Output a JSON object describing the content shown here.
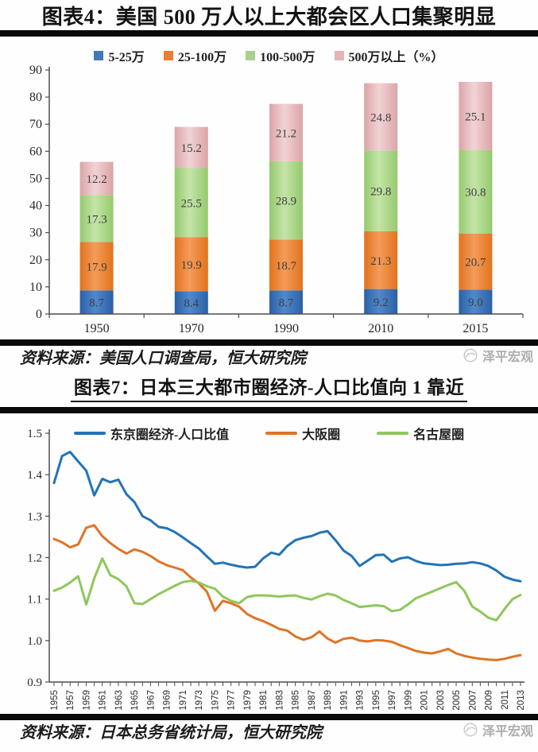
{
  "page": {
    "watermark_text": "泽平宏观"
  },
  "chart4": {
    "title": "图表4：美国 500 万人以上大都会区人口集聚明显",
    "source": "资料来源：美国人口调查局，恒大研究院"
  },
  "chart7": {
    "title": "图表7：日本三大都市圈经济-人口比值向 1 靠近",
    "source": "资料来源：日本总务省统计局，恒大研究院"
  },
  "chart_data": [
    {
      "type": "bar",
      "stacked": true,
      "title": "图表4：美国 500 万人以上大都会区人口集聚明显",
      "categories": [
        "1950",
        "1970",
        "1990",
        "2010",
        "2015"
      ],
      "series": [
        {
          "name": "5-25万",
          "color": "#4277b8",
          "color_edge": "#2c60a6",
          "color_center": "#5089cb",
          "values": [
            8.7,
            8.4,
            8.7,
            9.2,
            9.0
          ]
        },
        {
          "name": "25-100万",
          "color": "#ed7d31",
          "color_edge": "#e1731d",
          "color_center": "#f49c5a",
          "values": [
            17.9,
            19.9,
            18.7,
            21.3,
            20.7
          ]
        },
        {
          "name": "100-500万",
          "color": "#a9d08e",
          "color_edge": "#95c96d",
          "color_center": "#c4e5a9",
          "values": [
            17.3,
            25.5,
            28.9,
            29.8,
            30.8
          ]
        },
        {
          "name": "500万以上（%）",
          "color": "#e3b4b8",
          "color_edge": "#dba4a8",
          "color_center": "#f1d3d5",
          "values": [
            12.2,
            15.2,
            21.2,
            24.8,
            25.1
          ]
        }
      ],
      "ylim": [
        0,
        90
      ],
      "ytick_step": 10,
      "grid": false,
      "legend_position": "top",
      "value_label_color": "#3f3f3f"
    },
    {
      "type": "line",
      "title": "图表7：日本三大都市圈经济-人口比值向 1 靠近",
      "x_start": 1955,
      "x_end": 2013,
      "xtick_label_step": 2,
      "ylim": [
        0.9,
        1.5
      ],
      "ytick_step": 0.1,
      "grid": false,
      "legend_position": "top",
      "series": [
        {
          "name": "东京圈经济-人口比值",
          "color": "#2273b8",
          "values": [
            1.38,
            1.445,
            1.455,
            1.432,
            1.41,
            1.35,
            1.39,
            1.382,
            1.388,
            1.353,
            1.334,
            1.3,
            1.29,
            1.274,
            1.271,
            1.262,
            1.249,
            1.235,
            1.222,
            1.203,
            1.185,
            1.188,
            1.183,
            1.179,
            1.176,
            1.178,
            1.198,
            1.212,
            1.207,
            1.228,
            1.242,
            1.248,
            1.252,
            1.26,
            1.264,
            1.242,
            1.217,
            1.204,
            1.18,
            1.193,
            1.206,
            1.207,
            1.19,
            1.198,
            1.201,
            1.192,
            1.186,
            1.184,
            1.182,
            1.183,
            1.185,
            1.186,
            1.189,
            1.186,
            1.18,
            1.169,
            1.154,
            1.147,
            1.143
          ]
        },
        {
          "name": "大阪圈",
          "color": "#df7426",
          "values": [
            1.245,
            1.237,
            1.225,
            1.232,
            1.272,
            1.278,
            1.252,
            1.235,
            1.221,
            1.21,
            1.22,
            1.214,
            1.204,
            1.191,
            1.182,
            1.176,
            1.17,
            1.152,
            1.138,
            1.118,
            1.072,
            1.096,
            1.09,
            1.082,
            1.064,
            1.054,
            1.047,
            1.038,
            1.028,
            1.024,
            1.01,
            1.002,
            1.008,
            1.022,
            1.005,
            0.995,
            1.004,
            1.007,
            1.0,
            0.998,
            1.001,
            1.0,
            0.997,
            0.989,
            0.982,
            0.975,
            0.971,
            0.969,
            0.974,
            0.98,
            0.969,
            0.963,
            0.959,
            0.956,
            0.954,
            0.953,
            0.956,
            0.961,
            0.965
          ]
        },
        {
          "name": "名古屋圈",
          "color": "#8ec75b",
          "values": [
            1.12,
            1.128,
            1.14,
            1.155,
            1.087,
            1.15,
            1.198,
            1.158,
            1.148,
            1.131,
            1.09,
            1.088,
            1.1,
            1.112,
            1.122,
            1.132,
            1.141,
            1.144,
            1.14,
            1.131,
            1.125,
            1.106,
            1.096,
            1.09,
            1.105,
            1.109,
            1.109,
            1.108,
            1.106,
            1.108,
            1.109,
            1.103,
            1.099,
            1.107,
            1.113,
            1.109,
            1.098,
            1.09,
            1.081,
            1.083,
            1.085,
            1.083,
            1.071,
            1.074,
            1.087,
            1.102,
            1.11,
            1.118,
            1.126,
            1.134,
            1.141,
            1.12,
            1.082,
            1.07,
            1.055,
            1.049,
            1.076,
            1.1,
            1.11
          ]
        }
      ]
    }
  ]
}
